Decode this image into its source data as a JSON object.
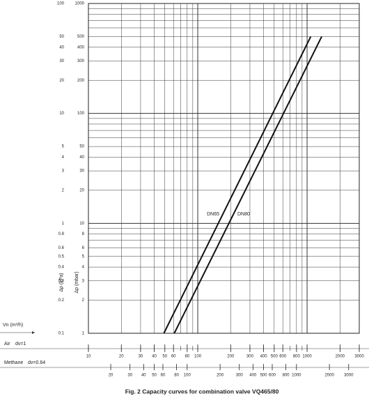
{
  "chart_data": {
    "type": "line",
    "title": "Fig. 2 Capacity curves for combination valve VQ465/80",
    "log": true,
    "grid": true,
    "xlabel": "Air",
    "air_note": "dv=1",
    "methane_label": "Methane",
    "methane_note": "dv=0.64",
    "flow_label": "Vn (m³/h)",
    "ylabel": "Δp (kPa)",
    "y2label": "Δp (mbar)",
    "xlim": [
      10,
      3000
    ],
    "xticks": [
      10,
      20,
      30,
      40,
      50,
      60,
      80,
      100,
      200,
      300,
      400,
      500,
      600,
      800,
      1000,
      2000,
      3000
    ],
    "xgrid": [
      10,
      20,
      30,
      40,
      50,
      60,
      70,
      80,
      90,
      100,
      200,
      300,
      400,
      500,
      600,
      700,
      800,
      900,
      1000,
      2000,
      3000
    ],
    "methane_xlim": [
      12.5,
      3750
    ],
    "methane_xticks": [
      20,
      30,
      40,
      50,
      60,
      80,
      100,
      200,
      300,
      400,
      500,
      600,
      800,
      1000,
      2000,
      3000
    ],
    "ylim": [
      0.1,
      100
    ],
    "yticks": [
      0.1,
      0.2,
      0.3,
      0.4,
      0.5,
      0.6,
      0.8,
      1,
      2,
      3,
      4,
      5,
      10,
      20,
      30,
      40,
      50,
      100
    ],
    "ygrid": [
      0.1,
      0.2,
      0.3,
      0.4,
      0.5,
      0.6,
      0.7,
      0.8,
      0.9,
      1,
      2,
      3,
      4,
      5,
      6,
      7,
      8,
      9,
      10,
      20,
      30,
      40,
      50,
      60,
      70,
      80,
      90,
      100
    ],
    "y2lim": [
      1,
      1000
    ],
    "y2ticks": [
      1,
      2,
      3,
      4,
      5,
      6,
      8,
      10,
      20,
      30,
      40,
      50,
      100,
      200,
      300,
      400,
      500,
      1000
    ],
    "series": [
      {
        "name": "DN65",
        "color": "#111111",
        "x": [
          49,
          1080
        ],
        "values": [
          0.1,
          50
        ]
      },
      {
        "name": "DN80",
        "color": "#111111",
        "x": [
          61,
          1360
        ],
        "values": [
          0.1,
          50
        ]
      }
    ]
  }
}
